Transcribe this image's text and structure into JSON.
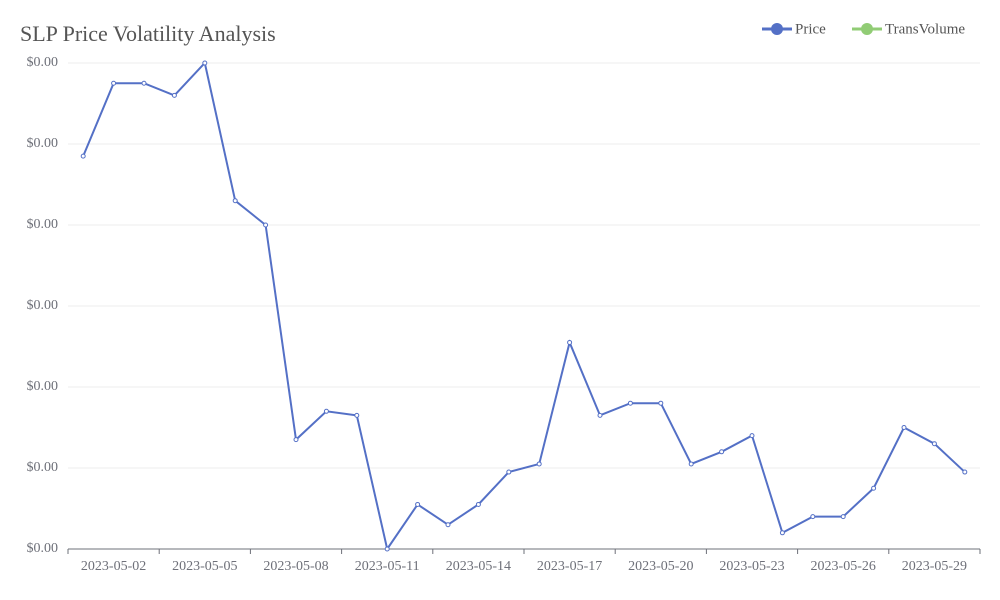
{
  "chart_data": {
    "type": "line",
    "title": "SLP Price Volatility Analysis",
    "categories": [
      null,
      "2023-05-02",
      null,
      null,
      "2023-05-05",
      null,
      null,
      "2023-05-08",
      null,
      null,
      "2023-05-11",
      null,
      null,
      "2023-05-14",
      null,
      null,
      "2023-05-17",
      null,
      null,
      "2023-05-20",
      null,
      null,
      "2023-05-23",
      null,
      null,
      "2023-05-26",
      null,
      null,
      "2023-05-29",
      null
    ],
    "series": [
      {
        "name": "Price",
        "color": "#5470c6",
        "values": [
          0.00297,
          0.00315,
          0.00315,
          0.00312,
          0.0032,
          0.00286,
          0.0028,
          0.00227,
          0.00234,
          0.00233,
          0.002,
          0.00211,
          0.00206,
          0.00211,
          0.00219,
          0.00221,
          0.00251,
          0.00233,
          0.00236,
          0.00236,
          0.00221,
          0.00224,
          0.00228,
          0.00204,
          0.00208,
          0.00208,
          0.00215,
          0.0023,
          0.00226,
          0.00219
        ]
      },
      {
        "name": "TransVolume",
        "color": "#91cc75"
      }
    ],
    "ylim": [
      0.002,
      0.0032
    ],
    "yticks": [
      {
        "value": 0.002,
        "label": "$0.00"
      },
      {
        "value": 0.0022,
        "label": "$0.00"
      },
      {
        "value": 0.0024,
        "label": "$0.00"
      },
      {
        "value": 0.0026,
        "label": "$0.00"
      },
      {
        "value": 0.0028,
        "label": "$0.00"
      },
      {
        "value": 0.003,
        "label": "$0.00"
      },
      {
        "value": 0.0032,
        "label": "$0.00"
      }
    ],
    "grid": true
  }
}
